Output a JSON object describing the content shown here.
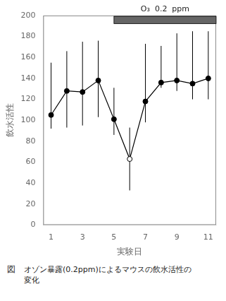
{
  "chart_data": {
    "type": "line",
    "xlabel": "実験日",
    "ylabel": "飲水活性",
    "x": [
      1,
      2,
      3,
      4,
      5,
      6,
      7,
      8,
      9,
      10,
      11
    ],
    "values": [
      105,
      128,
      127,
      138,
      101,
      63,
      118,
      136,
      138,
      135,
      140
    ],
    "error_upper": [
      50,
      38,
      48,
      38,
      30,
      30,
      55,
      35,
      45,
      50,
      45
    ],
    "error_lower": [
      13,
      35,
      32,
      35,
      15,
      30,
      20,
      5,
      10,
      15,
      20
    ],
    "color": "#000000",
    "colors": [
      "#000000",
      "#000000",
      "#000000",
      "#000000",
      "#000000",
      "#ffffff",
      "#000000",
      "#000000",
      "#000000",
      "#000000",
      "#000000"
    ],
    "marker": "circle",
    "line_style": "solid",
    "xlim": [
      0.5,
      11.5
    ],
    "xticks": [
      1,
      3,
      5,
      7,
      9,
      11
    ],
    "ylim": [
      0,
      200
    ],
    "yticks": [
      0,
      20,
      40,
      60,
      80,
      100,
      120,
      140,
      160,
      180,
      200
    ],
    "grid": false,
    "ozone_bar": {
      "x_start": 5.0,
      "x_end": 11.5,
      "label": "O₃  0.2  ppm",
      "color": "#666666"
    },
    "caption_label": "図",
    "caption": "オゾン暴露(0.2ppm)によるマウスの飲水活性の\n変化"
  }
}
